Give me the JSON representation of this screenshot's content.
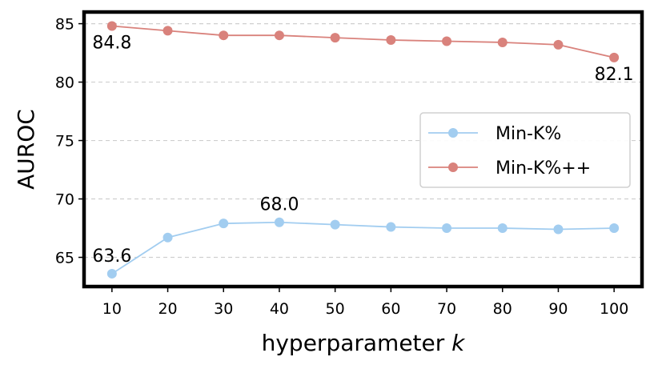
{
  "chart_data": {
    "type": "line",
    "xlabel": "hyperparameter",
    "xlabel_var": "k",
    "ylabel": "AUROC",
    "x": [
      10,
      20,
      30,
      40,
      50,
      60,
      70,
      80,
      90,
      100
    ],
    "xlim": [
      5,
      105
    ],
    "ylim": [
      62.5,
      86
    ],
    "yticks": [
      65,
      70,
      75,
      80,
      85
    ],
    "xticks": [
      10,
      20,
      30,
      40,
      50,
      60,
      70,
      80,
      90,
      100
    ],
    "grid": "y-dashed",
    "legend_position": "center-right",
    "series": [
      {
        "name": "Min-K%",
        "color": "#a2cdf0",
        "values": [
          63.6,
          66.7,
          67.9,
          68.0,
          67.8,
          67.6,
          67.5,
          67.5,
          67.4,
          67.5
        ]
      },
      {
        "name": "Min-K%++",
        "color": "#d9827c",
        "values": [
          84.8,
          84.4,
          84.0,
          84.0,
          83.8,
          83.6,
          83.5,
          83.4,
          83.2,
          82.1
        ]
      }
    ],
    "annotations": [
      {
        "series": 1,
        "index": 0,
        "text": "84.8",
        "placement": "below"
      },
      {
        "series": 1,
        "index": 9,
        "text": "82.1",
        "placement": "below"
      },
      {
        "series": 0,
        "index": 0,
        "text": "63.6",
        "placement": "above"
      },
      {
        "series": 0,
        "index": 3,
        "text": "68.0",
        "placement": "above"
      }
    ]
  }
}
